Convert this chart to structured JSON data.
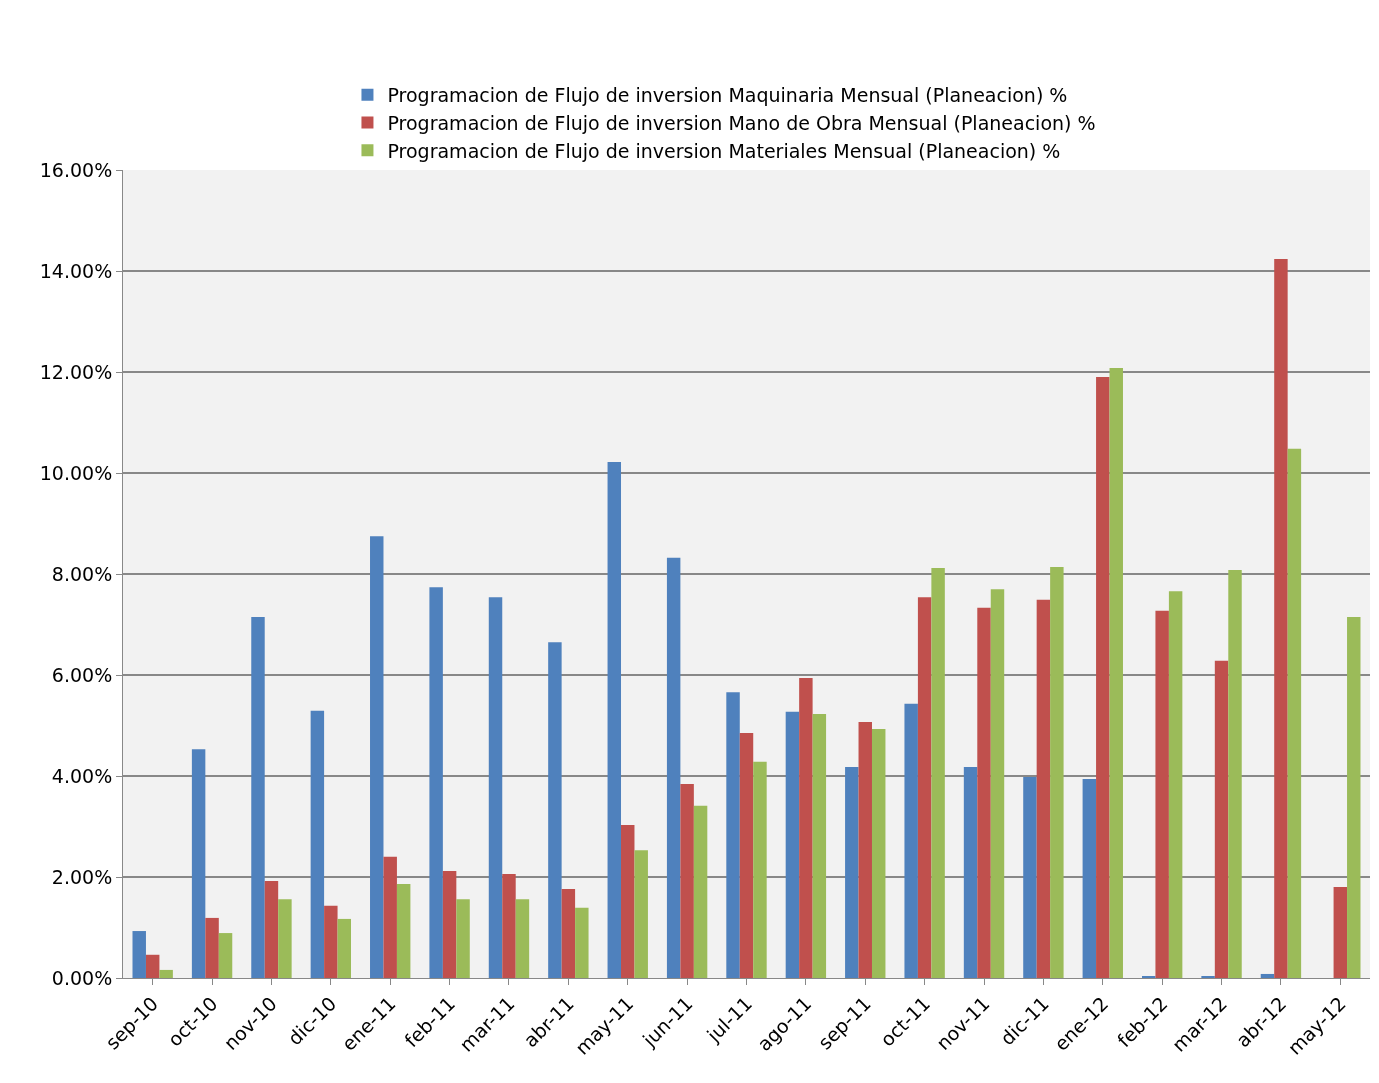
{
  "chart_data": {
    "type": "bar",
    "categories": [
      "sep-10",
      "oct-10",
      "nov-10",
      "dic-10",
      "ene-11",
      "feb-11",
      "mar-11",
      "abr-11",
      "may-11",
      "jun-11",
      "jul-11",
      "ago-11",
      "sep-11",
      "oct-11",
      "nov-11",
      "dic-11",
      "ene-12",
      "feb-12",
      "mar-12",
      "abr-12",
      "may-12"
    ],
    "series": [
      {
        "name": "Programacion de Flujo de inversion Maquinaria Mensual (Planeacion) %",
        "color": "#4f81bd",
        "values": [
          0.93,
          4.53,
          7.15,
          5.29,
          8.75,
          7.74,
          7.54,
          6.65,
          10.22,
          8.32,
          5.66,
          5.27,
          4.18,
          5.43,
          4.18,
          3.98,
          3.94,
          0.02,
          0.04,
          0.08,
          0
        ]
      },
      {
        "name": "Programacion de Flujo de inversion Mano de Obra Mensual (Planeacion) %",
        "color": "#c0504d",
        "values": [
          0.46,
          1.19,
          1.92,
          1.43,
          2.4,
          2.12,
          2.06,
          1.76,
          3.03,
          3.84,
          4.85,
          5.94,
          5.07,
          7.54,
          7.33,
          7.49,
          11.9,
          7.27,
          6.28,
          14.24,
          1.8
        ]
      },
      {
        "name": "Programacion de Flujo de inversion Materiales Mensual (Planeacion) %",
        "color": "#9bbb59",
        "values": [
          0.16,
          0.89,
          1.56,
          1.17,
          1.86,
          1.56,
          1.56,
          1.39,
          2.53,
          3.41,
          4.28,
          5.23,
          4.93,
          8.12,
          7.7,
          8.14,
          12.08,
          7.66,
          8.08,
          10.48,
          7.15
        ]
      }
    ],
    "ylim": [
      0,
      16
    ],
    "yticks": [
      {
        "value": 0,
        "label": "0.00%"
      },
      {
        "value": 2,
        "label": "2.00%"
      },
      {
        "value": 4,
        "label": "4.00%"
      },
      {
        "value": 6,
        "label": "6.00%"
      },
      {
        "value": 8,
        "label": "8.00%"
      },
      {
        "value": 10,
        "label": "10.00%"
      },
      {
        "value": 12,
        "label": "12.00%"
      },
      {
        "value": 14,
        "label": "14.00%"
      },
      {
        "value": 16,
        "label": "16.00%"
      }
    ],
    "grid": "y",
    "legend": "top"
  }
}
